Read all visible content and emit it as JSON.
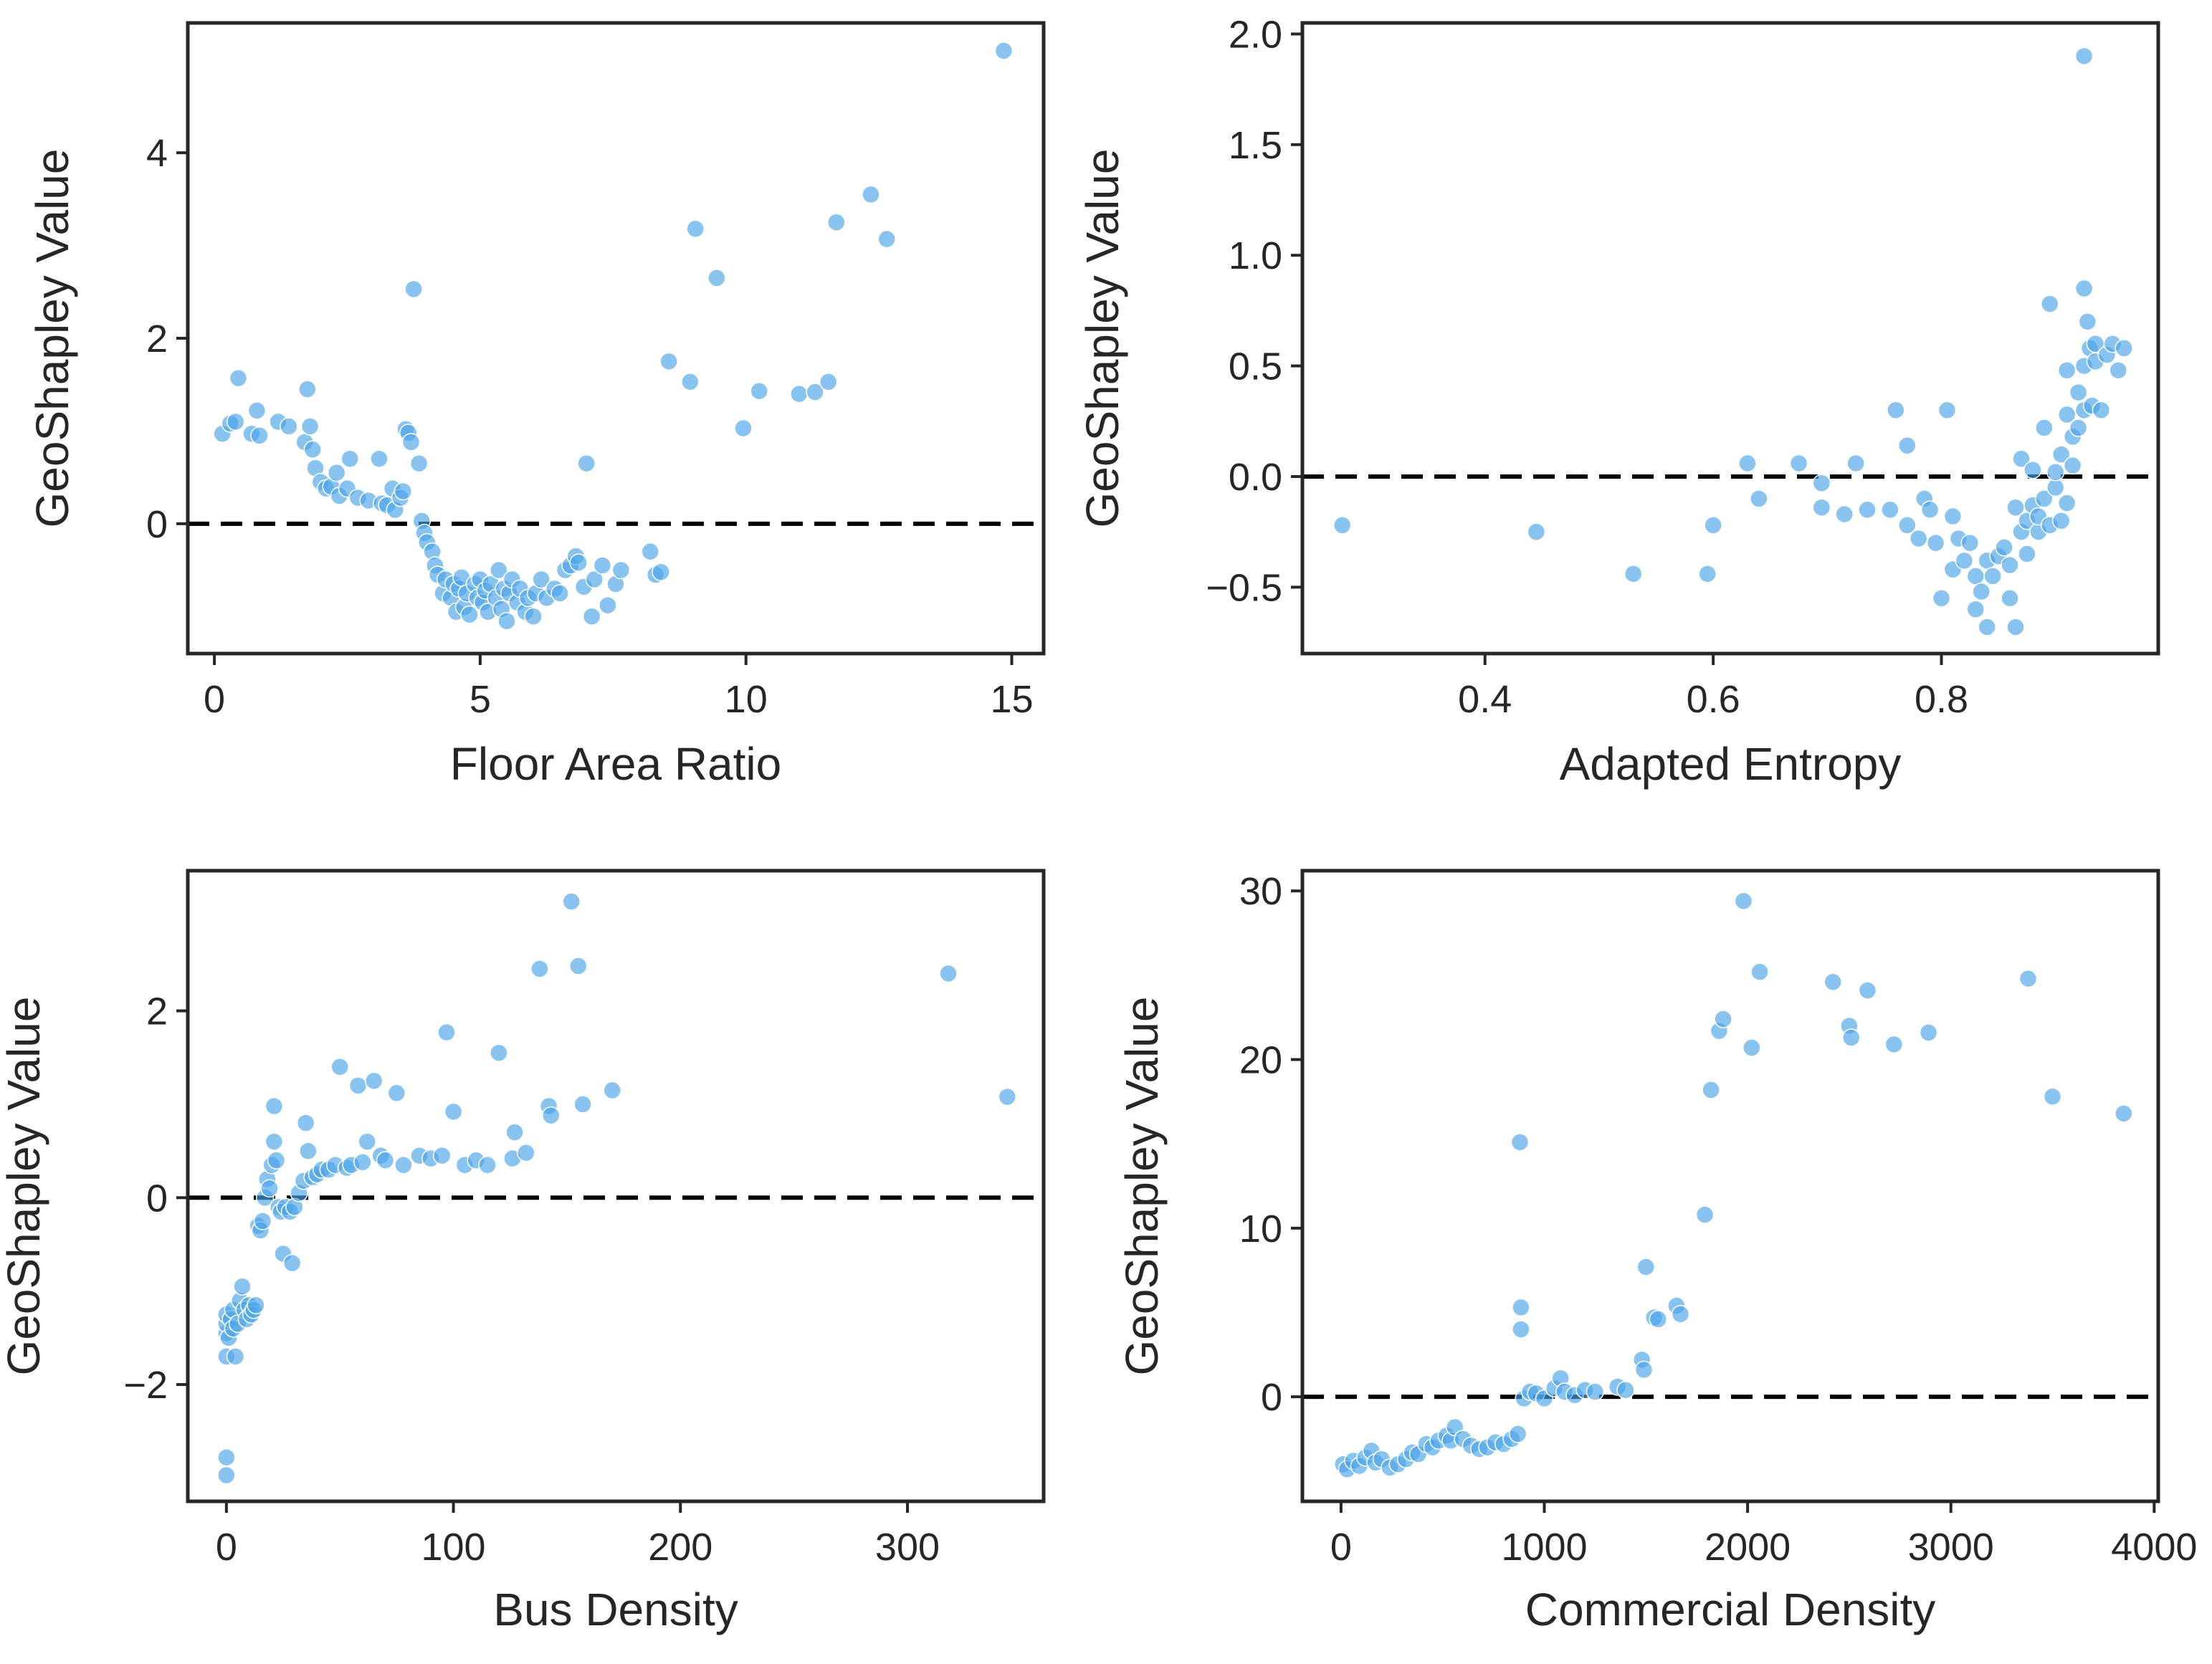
{
  "colors": {
    "point": "#4aa5ea",
    "point_opacity": 0.65,
    "zero_line": "#000000",
    "axes": "#262626"
  },
  "chart_data": [
    {
      "type": "scatter",
      "xlabel": "Floor Area Ratio",
      "ylabel": "GeoShapley Value",
      "xlim": [
        -0.5,
        15.6
      ],
      "ylim": [
        -1.4,
        5.4
      ],
      "xticks": [
        0,
        5,
        10,
        15
      ],
      "yticks": [
        0,
        2,
        4
      ],
      "xtick_labels": [
        "0",
        "5",
        "10",
        "15"
      ],
      "ytick_labels": [
        "0",
        "2",
        "4"
      ],
      "reference_line": 0,
      "grid": false,
      "points": [
        [
          0.15,
          0.97
        ],
        [
          0.3,
          1.08
        ],
        [
          0.4,
          1.1
        ],
        [
          0.45,
          1.57
        ],
        [
          0.7,
          0.97
        ],
        [
          0.8,
          1.22
        ],
        [
          0.85,
          0.95
        ],
        [
          1.2,
          1.1
        ],
        [
          1.4,
          1.05
        ],
        [
          1.7,
          0.88
        ],
        [
          1.75,
          1.45
        ],
        [
          1.8,
          1.05
        ],
        [
          1.85,
          0.8
        ],
        [
          1.9,
          0.6
        ],
        [
          2.0,
          0.45
        ],
        [
          2.1,
          0.38
        ],
        [
          2.2,
          0.4
        ],
        [
          2.3,
          0.55
        ],
        [
          2.35,
          0.3
        ],
        [
          2.5,
          0.38
        ],
        [
          2.55,
          0.7
        ],
        [
          2.7,
          0.28
        ],
        [
          2.9,
          0.25
        ],
        [
          3.1,
          0.7
        ],
        [
          3.15,
          0.22
        ],
        [
          3.25,
          0.2
        ],
        [
          3.35,
          0.38
        ],
        [
          3.4,
          0.15
        ],
        [
          3.5,
          0.28
        ],
        [
          3.55,
          0.35
        ],
        [
          3.6,
          1.02
        ],
        [
          3.65,
          0.98
        ],
        [
          3.7,
          0.88
        ],
        [
          3.75,
          2.53
        ],
        [
          3.85,
          0.65
        ],
        [
          3.9,
          0.03
        ],
        [
          3.95,
          -0.1
        ],
        [
          4.0,
          -0.2
        ],
        [
          4.1,
          -0.3
        ],
        [
          4.15,
          -0.45
        ],
        [
          4.2,
          -0.55
        ],
        [
          4.3,
          -0.75
        ],
        [
          4.35,
          -0.6
        ],
        [
          4.45,
          -0.8
        ],
        [
          4.5,
          -0.65
        ],
        [
          4.55,
          -0.95
        ],
        [
          4.6,
          -0.7
        ],
        [
          4.65,
          -0.58
        ],
        [
          4.7,
          -0.9
        ],
        [
          4.75,
          -0.75
        ],
        [
          4.8,
          -0.98
        ],
        [
          4.9,
          -0.65
        ],
        [
          4.95,
          -0.8
        ],
        [
          5.0,
          -0.6
        ],
        [
          5.05,
          -0.85
        ],
        [
          5.1,
          -0.72
        ],
        [
          5.15,
          -0.95
        ],
        [
          5.2,
          -0.65
        ],
        [
          5.3,
          -0.8
        ],
        [
          5.35,
          -0.5
        ],
        [
          5.4,
          -0.92
        ],
        [
          5.45,
          -0.7
        ],
        [
          5.5,
          -1.05
        ],
        [
          5.55,
          -0.75
        ],
        [
          5.6,
          -0.6
        ],
        [
          5.7,
          -0.85
        ],
        [
          5.75,
          -0.7
        ],
        [
          5.85,
          -0.95
        ],
        [
          5.9,
          -0.8
        ],
        [
          6.0,
          -1.0
        ],
        [
          6.05,
          -0.75
        ],
        [
          6.15,
          -0.6
        ],
        [
          6.25,
          -0.8
        ],
        [
          6.4,
          -0.7
        ],
        [
          6.5,
          -0.75
        ],
        [
          6.6,
          -0.5
        ],
        [
          6.7,
          -0.45
        ],
        [
          6.8,
          -0.35
        ],
        [
          6.85,
          -0.42
        ],
        [
          6.95,
          -0.68
        ],
        [
          7.0,
          0.65
        ],
        [
          7.1,
          -1.0
        ],
        [
          7.15,
          -0.6
        ],
        [
          7.3,
          -0.45
        ],
        [
          7.4,
          -0.88
        ],
        [
          7.55,
          -0.65
        ],
        [
          7.65,
          -0.5
        ],
        [
          8.2,
          -0.3
        ],
        [
          8.3,
          -0.55
        ],
        [
          8.4,
          -0.52
        ],
        [
          8.55,
          1.75
        ],
        [
          8.95,
          1.53
        ],
        [
          9.05,
          3.18
        ],
        [
          9.45,
          2.65
        ],
        [
          9.95,
          1.03
        ],
        [
          10.25,
          1.43
        ],
        [
          11.0,
          1.4
        ],
        [
          11.3,
          1.42
        ],
        [
          11.55,
          1.53
        ],
        [
          11.7,
          3.25
        ],
        [
          12.35,
          3.55
        ],
        [
          12.65,
          3.07
        ],
        [
          14.85,
          5.1
        ]
      ]
    },
    {
      "type": "scatter",
      "xlabel": "Adapted Entropy",
      "ylabel": "GeoShapley Value",
      "xlim": [
        0.24,
        0.99
      ],
      "ylim": [
        -0.8,
        2.05
      ],
      "xticks": [
        0.4,
        0.6,
        0.8
      ],
      "yticks": [
        -0.5,
        0.0,
        0.5,
        1.0,
        1.5,
        2.0
      ],
      "xtick_labels": [
        "0.4",
        "0.6",
        "0.8"
      ],
      "ytick_labels": [
        "−0.5",
        "0.0",
        "0.5",
        "1.0",
        "1.5",
        "2.0"
      ],
      "reference_line": 0,
      "grid": false,
      "points": [
        [
          0.275,
          -0.22
        ],
        [
          0.445,
          -0.25
        ],
        [
          0.53,
          -0.44
        ],
        [
          0.595,
          -0.44
        ],
        [
          0.6,
          -0.22
        ],
        [
          0.63,
          0.06
        ],
        [
          0.64,
          -0.1
        ],
        [
          0.675,
          0.06
        ],
        [
          0.695,
          -0.03
        ],
        [
          0.695,
          -0.14
        ],
        [
          0.715,
          -0.17
        ],
        [
          0.725,
          0.06
        ],
        [
          0.735,
          -0.15
        ],
        [
          0.755,
          -0.15
        ],
        [
          0.76,
          0.3
        ],
        [
          0.77,
          -0.22
        ],
        [
          0.77,
          0.14
        ],
        [
          0.78,
          -0.28
        ],
        [
          0.785,
          -0.1
        ],
        [
          0.79,
          -0.15
        ],
        [
          0.795,
          -0.3
        ],
        [
          0.8,
          -0.55
        ],
        [
          0.805,
          0.3
        ],
        [
          0.81,
          -0.18
        ],
        [
          0.81,
          -0.42
        ],
        [
          0.815,
          -0.28
        ],
        [
          0.82,
          -0.38
        ],
        [
          0.825,
          -0.3
        ],
        [
          0.83,
          -0.45
        ],
        [
          0.83,
          -0.6
        ],
        [
          0.835,
          -0.52
        ],
        [
          0.84,
          -0.38
        ],
        [
          0.84,
          -0.68
        ],
        [
          0.845,
          -0.45
        ],
        [
          0.85,
          -0.36
        ],
        [
          0.855,
          -0.32
        ],
        [
          0.86,
          -0.4
        ],
        [
          0.86,
          -0.55
        ],
        [
          0.865,
          -0.14
        ],
        [
          0.865,
          -0.68
        ],
        [
          0.87,
          0.08
        ],
        [
          0.87,
          -0.25
        ],
        [
          0.875,
          -0.2
        ],
        [
          0.875,
          -0.35
        ],
        [
          0.88,
          -0.13
        ],
        [
          0.88,
          0.03
        ],
        [
          0.885,
          -0.25
        ],
        [
          0.885,
          -0.18
        ],
        [
          0.89,
          -0.1
        ],
        [
          0.89,
          0.22
        ],
        [
          0.895,
          -0.22
        ],
        [
          0.895,
          0.78
        ],
        [
          0.9,
          -0.05
        ],
        [
          0.9,
          0.02
        ],
        [
          0.905,
          -0.2
        ],
        [
          0.905,
          0.1
        ],
        [
          0.91,
          0.28
        ],
        [
          0.91,
          0.48
        ],
        [
          0.91,
          -0.12
        ],
        [
          0.915,
          0.18
        ],
        [
          0.915,
          0.05
        ],
        [
          0.92,
          0.22
        ],
        [
          0.92,
          0.38
        ],
        [
          0.925,
          0.5
        ],
        [
          0.925,
          0.3
        ],
        [
          0.925,
          1.9
        ],
        [
          0.925,
          0.85
        ],
        [
          0.928,
          0.7
        ],
        [
          0.93,
          0.58
        ],
        [
          0.932,
          0.32
        ],
        [
          0.935,
          0.6
        ],
        [
          0.935,
          0.52
        ],
        [
          0.94,
          0.3
        ],
        [
          0.945,
          0.55
        ],
        [
          0.95,
          0.6
        ],
        [
          0.955,
          0.48
        ],
        [
          0.96,
          0.58
        ]
      ]
    },
    {
      "type": "scatter",
      "xlabel": "Bus Density",
      "ylabel": "GeoShapley Value",
      "xlim": [
        -17,
        360
      ],
      "ylim": [
        -3.25,
        3.5
      ],
      "xticks": [
        0,
        100,
        200,
        300
      ],
      "yticks": [
        -2,
        0,
        2
      ],
      "xtick_labels": [
        "0",
        "100",
        "200",
        "300"
      ],
      "ytick_labels": [
        "−2",
        "0",
        "2"
      ],
      "reference_line": 0,
      "grid": false,
      "points": [
        [
          0,
          -2.97
        ],
        [
          0,
          -2.78
        ],
        [
          0,
          -1.7
        ],
        [
          0,
          -1.45
        ],
        [
          0,
          -1.35
        ],
        [
          0,
          -1.25
        ],
        [
          1,
          -1.5
        ],
        [
          2,
          -1.3
        ],
        [
          3,
          -1.4
        ],
        [
          3,
          -1.2
        ],
        [
          4,
          -1.7
        ],
        [
          5,
          -1.35
        ],
        [
          6,
          -1.1
        ],
        [
          7,
          -0.95
        ],
        [
          8,
          -1.2
        ],
        [
          9,
          -1.3
        ],
        [
          10,
          -1.15
        ],
        [
          11,
          -1.25
        ],
        [
          12,
          -1.2
        ],
        [
          13,
          -1.15
        ],
        [
          14,
          -0.3
        ],
        [
          15,
          -0.35
        ],
        [
          16,
          -0.25
        ],
        [
          17,
          0.0
        ],
        [
          18,
          0.2
        ],
        [
          19,
          0.1
        ],
        [
          20,
          0.35
        ],
        [
          21,
          0.6
        ],
        [
          21,
          0.98
        ],
        [
          22,
          0.4
        ],
        [
          23,
          -0.1
        ],
        [
          24,
          -0.15
        ],
        [
          25,
          -0.6
        ],
        [
          26,
          -0.1
        ],
        [
          28,
          -0.15
        ],
        [
          29,
          -0.7
        ],
        [
          30,
          -0.1
        ],
        [
          32,
          0.05
        ],
        [
          34,
          0.18
        ],
        [
          35,
          0.8
        ],
        [
          36,
          0.5
        ],
        [
          38,
          0.22
        ],
        [
          40,
          0.25
        ],
        [
          42,
          0.3
        ],
        [
          45,
          0.3
        ],
        [
          48,
          0.35
        ],
        [
          50,
          1.4
        ],
        [
          53,
          0.32
        ],
        [
          55,
          0.35
        ],
        [
          58,
          1.2
        ],
        [
          60,
          0.38
        ],
        [
          62,
          0.6
        ],
        [
          65,
          1.25
        ],
        [
          68,
          0.45
        ],
        [
          70,
          0.4
        ],
        [
          75,
          1.12
        ],
        [
          78,
          0.35
        ],
        [
          85,
          0.45
        ],
        [
          90,
          0.42
        ],
        [
          95,
          0.45
        ],
        [
          97,
          1.77
        ],
        [
          100,
          0.92
        ],
        [
          105,
          0.35
        ],
        [
          110,
          0.4
        ],
        [
          115,
          0.35
        ],
        [
          120,
          1.55
        ],
        [
          126,
          0.42
        ],
        [
          127,
          0.7
        ],
        [
          132,
          0.48
        ],
        [
          138,
          2.45
        ],
        [
          142,
          0.98
        ],
        [
          143,
          0.88
        ],
        [
          152,
          3.17
        ],
        [
          155,
          2.48
        ],
        [
          157,
          1.0
        ],
        [
          170,
          1.15
        ],
        [
          318,
          2.4
        ],
        [
          344,
          1.08
        ]
      ]
    },
    {
      "type": "scatter",
      "xlabel": "Commercial Density",
      "ylabel": "GeoShapley Value",
      "xlim": [
        -190,
        4020
      ],
      "ylim": [
        -6.2,
        31.2
      ],
      "xticks": [
        0,
        1000,
        2000,
        3000,
        4000
      ],
      "yticks": [
        0,
        10,
        20,
        30
      ],
      "xtick_labels": [
        "0",
        "1000",
        "2000",
        "3000",
        "4000"
      ],
      "ytick_labels": [
        "0",
        "10",
        "20",
        "30"
      ],
      "reference_line": 0,
      "grid": false,
      "points": [
        [
          10,
          -4.0
        ],
        [
          30,
          -4.3
        ],
        [
          60,
          -3.8
        ],
        [
          90,
          -4.1
        ],
        [
          120,
          -3.6
        ],
        [
          150,
          -3.2
        ],
        [
          170,
          -3.9
        ],
        [
          200,
          -3.7
        ],
        [
          240,
          -4.2
        ],
        [
          280,
          -4.0
        ],
        [
          320,
          -3.7
        ],
        [
          350,
          -3.3
        ],
        [
          380,
          -3.4
        ],
        [
          420,
          -2.8
        ],
        [
          450,
          -3.0
        ],
        [
          480,
          -2.6
        ],
        [
          520,
          -2.3
        ],
        [
          540,
          -2.6
        ],
        [
          560,
          -1.8
        ],
        [
          600,
          -2.5
        ],
        [
          640,
          -2.9
        ],
        [
          680,
          -3.1
        ],
        [
          720,
          -3.0
        ],
        [
          760,
          -2.7
        ],
        [
          800,
          -2.8
        ],
        [
          840,
          -2.5
        ],
        [
          870,
          -2.2
        ],
        [
          880,
          15.1
        ],
        [
          885,
          5.3
        ],
        [
          885,
          4.0
        ],
        [
          900,
          -0.1
        ],
        [
          930,
          0.3
        ],
        [
          960,
          0.2
        ],
        [
          1000,
          -0.1
        ],
        [
          1050,
          0.5
        ],
        [
          1080,
          1.1
        ],
        [
          1100,
          0.3
        ],
        [
          1150,
          0.1
        ],
        [
          1200,
          0.4
        ],
        [
          1250,
          0.3
        ],
        [
          1360,
          0.6
        ],
        [
          1400,
          0.4
        ],
        [
          1480,
          2.2
        ],
        [
          1490,
          1.6
        ],
        [
          1500,
          7.7
        ],
        [
          1540,
          4.7
        ],
        [
          1560,
          4.6
        ],
        [
          1650,
          5.4
        ],
        [
          1670,
          4.9
        ],
        [
          1790,
          10.8
        ],
        [
          1820,
          18.2
        ],
        [
          1860,
          21.7
        ],
        [
          1880,
          22.4
        ],
        [
          1980,
          29.4
        ],
        [
          2020,
          20.7
        ],
        [
          2060,
          25.2
        ],
        [
          2420,
          24.6
        ],
        [
          2500,
          22.0
        ],
        [
          2510,
          21.3
        ],
        [
          2590,
          24.1
        ],
        [
          2720,
          20.9
        ],
        [
          2890,
          21.6
        ],
        [
          3380,
          24.8
        ],
        [
          3500,
          17.8
        ],
        [
          3850,
          16.8
        ]
      ]
    }
  ]
}
